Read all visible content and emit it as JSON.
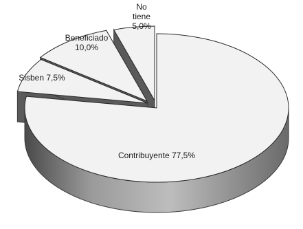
{
  "chart_data": {
    "type": "pie",
    "style": "3d-exploded",
    "slices": [
      {
        "name": "Contribuyente",
        "value": 77.5,
        "label": "Contribuyente 77,5%",
        "label_lines": [
          "Contribuyente 77,5%"
        ],
        "color": "#f2f2f2"
      },
      {
        "name": "Sisben",
        "value": 7.5,
        "label": "Sisben 7,5%",
        "label_lines": [
          "Sisben 7,5%"
        ],
        "color": "#f2f2f2"
      },
      {
        "name": "Beneficiado",
        "value": 10.0,
        "label": "Beneficiado 10,0%",
        "label_lines": [
          "Beneficiado",
          "10,0%"
        ],
        "color": "#f2f2f2"
      },
      {
        "name": "No tiene",
        "value": 5.0,
        "label": "No tiene 5,0%",
        "label_lines": [
          "No",
          "tiene",
          "5,0%"
        ],
        "color": "#f2f2f2"
      }
    ],
    "side_color": "#8a8a8a",
    "edge_color": "#3a3a3a"
  }
}
